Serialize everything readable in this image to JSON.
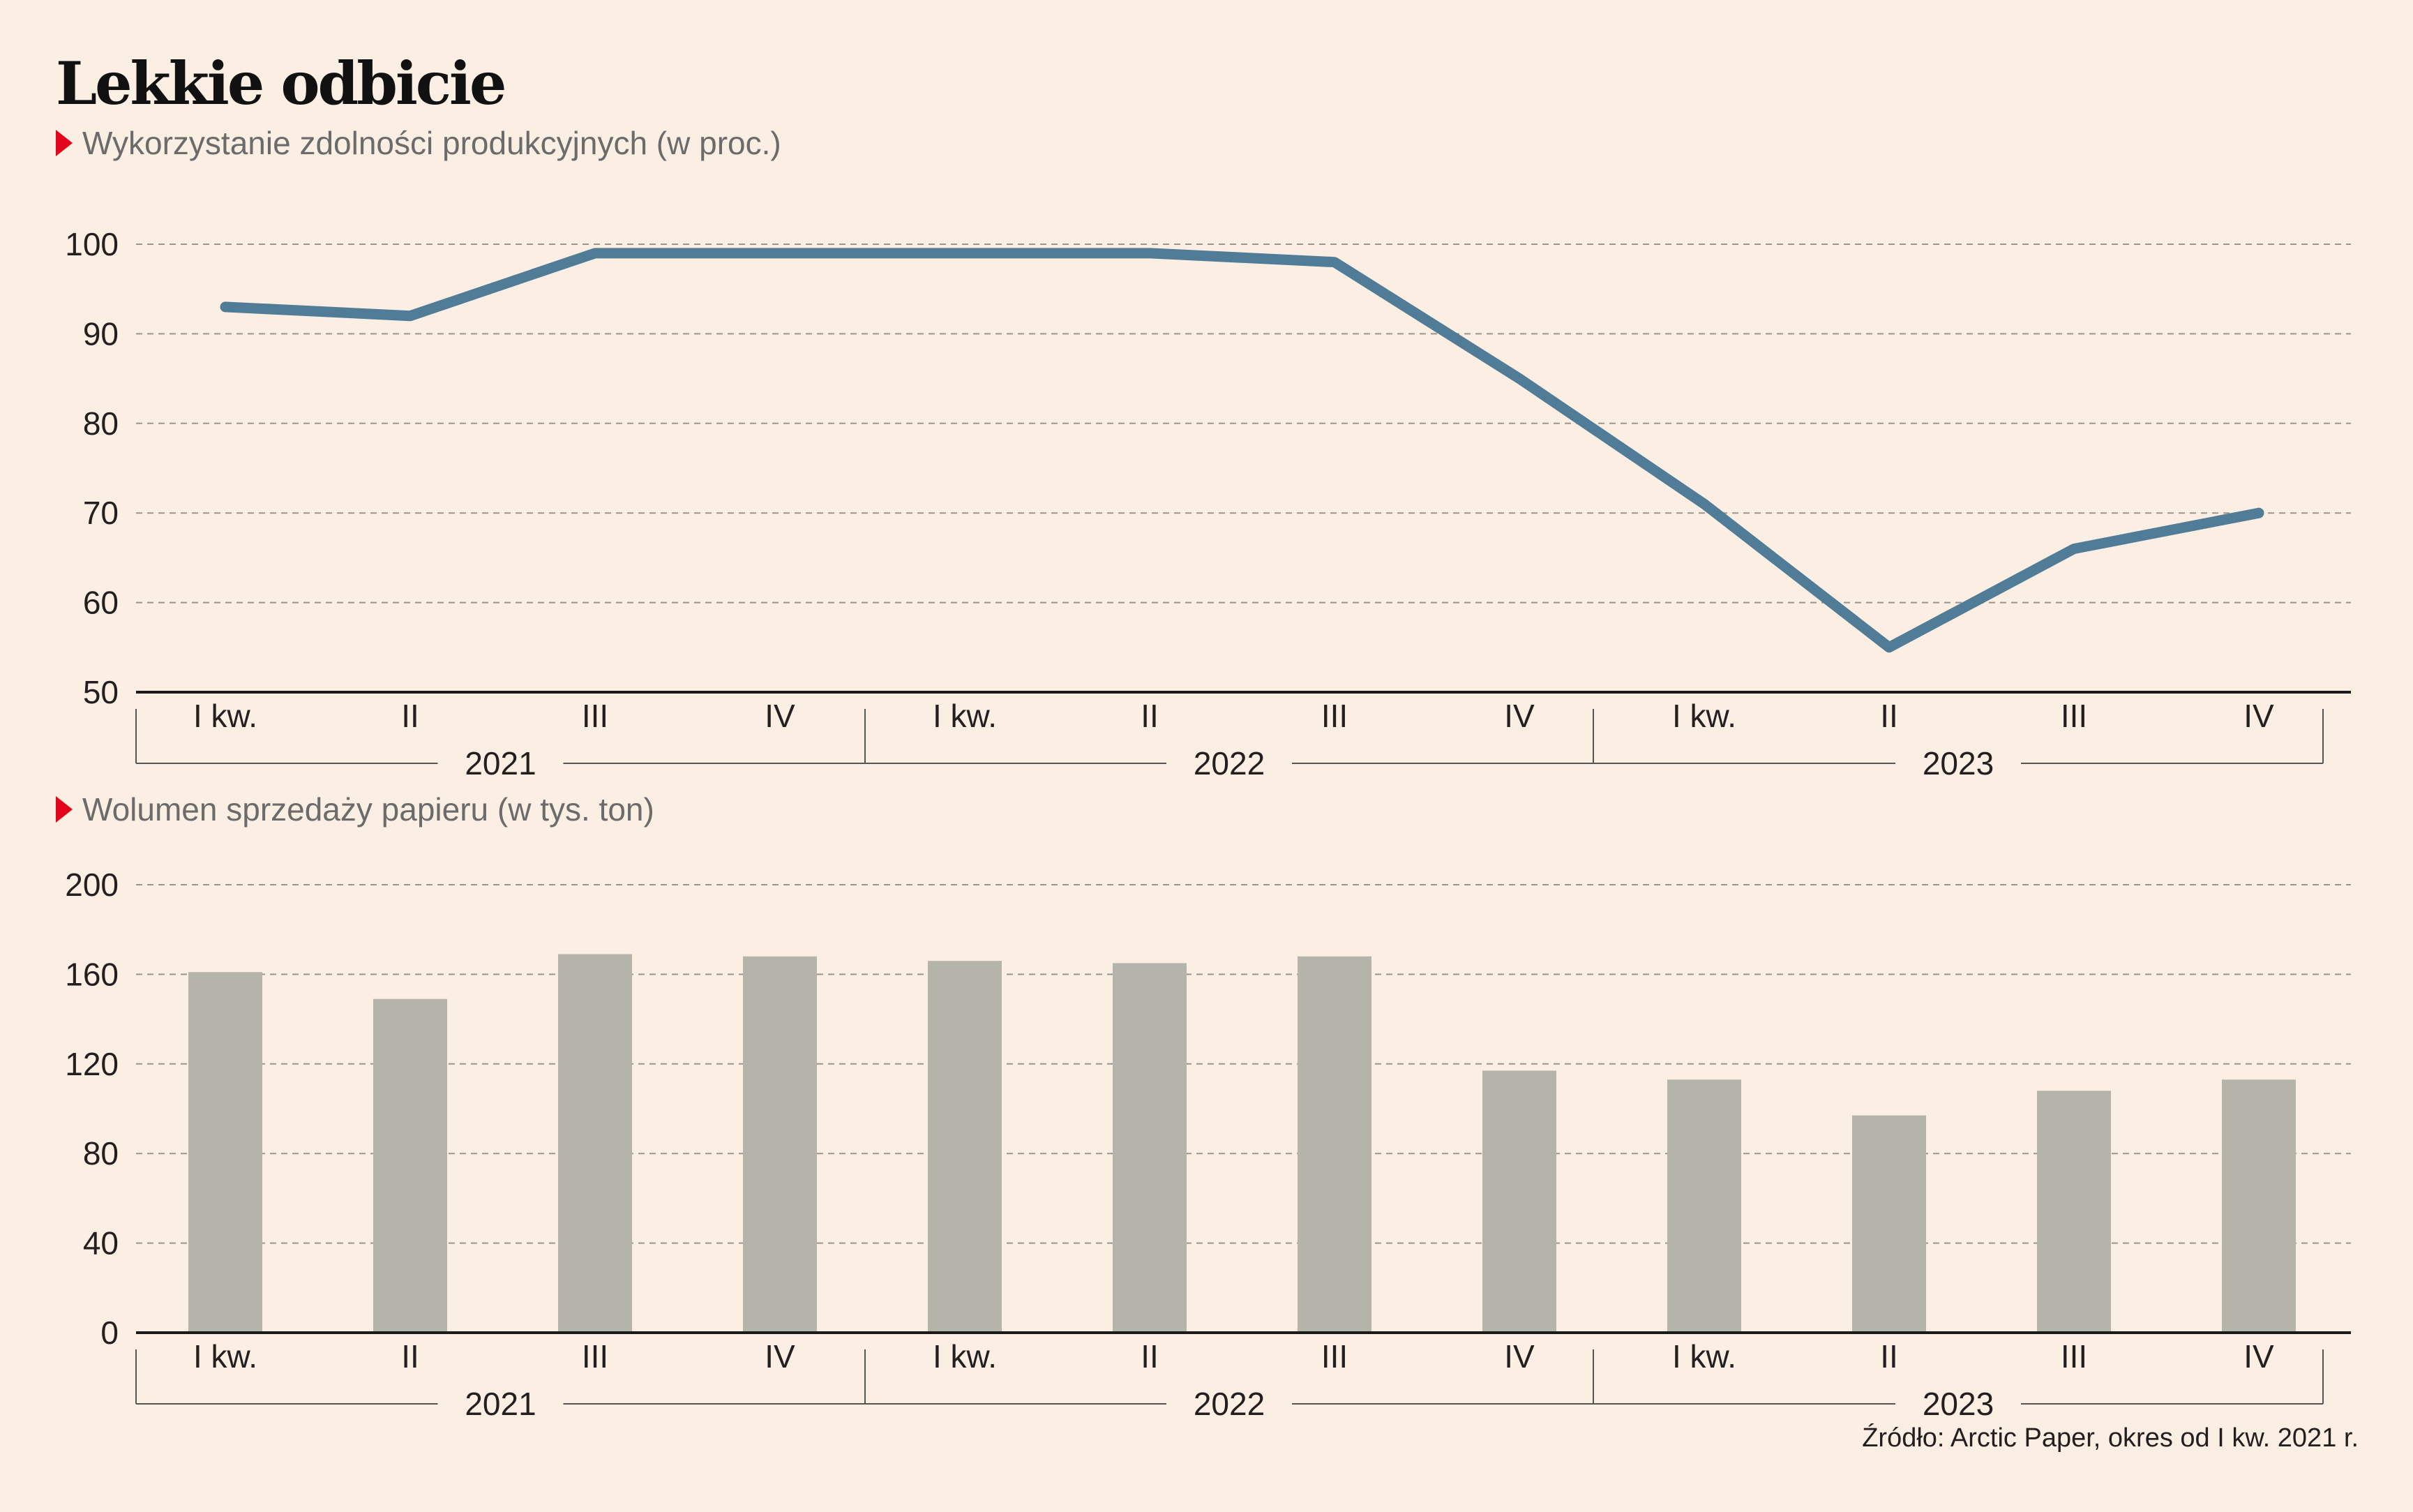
{
  "title": "Lekkie odbicie",
  "source": "Źródło: Arctic Paper, okres od I kw. 2021 r.",
  "colors": {
    "background": "#fbeee2",
    "line": "#517c97",
    "bar": "#b5b4ab",
    "marker": "#e3051b"
  },
  "chart_data": [
    {
      "type": "line",
      "title": "",
      "subtitle": "Wykorzystanie zdolności produkcyjnych (w proc.)",
      "categories": [
        "I kw.",
        "II",
        "III",
        "IV",
        "I kw.",
        "II",
        "III",
        "IV",
        "I kw.",
        "II",
        "III",
        "IV"
      ],
      "years": [
        "2021",
        "2022",
        "2023"
      ],
      "values": [
        93,
        92,
        99,
        99,
        99,
        99,
        98,
        85,
        71,
        55,
        66,
        70
      ],
      "ylim": [
        50,
        100
      ],
      "yticks": [
        "50",
        "60",
        "70",
        "80",
        "90",
        "100"
      ],
      "grid": true
    },
    {
      "type": "bar",
      "title": "",
      "subtitle": "Wolumen sprzedaży papieru (w tys. ton)",
      "categories": [
        "I kw.",
        "II",
        "III",
        "IV",
        "I kw.",
        "II",
        "III",
        "IV",
        "I kw.",
        "II",
        "III",
        "IV"
      ],
      "years": [
        "2021",
        "2022",
        "2023"
      ],
      "values": [
        161,
        149,
        169,
        168,
        166,
        165,
        168,
        117,
        113,
        97,
        108,
        113
      ],
      "ylim": [
        0,
        200
      ],
      "yticks": [
        "0",
        "40",
        "80",
        "120",
        "160",
        "200"
      ],
      "grid": true
    }
  ]
}
